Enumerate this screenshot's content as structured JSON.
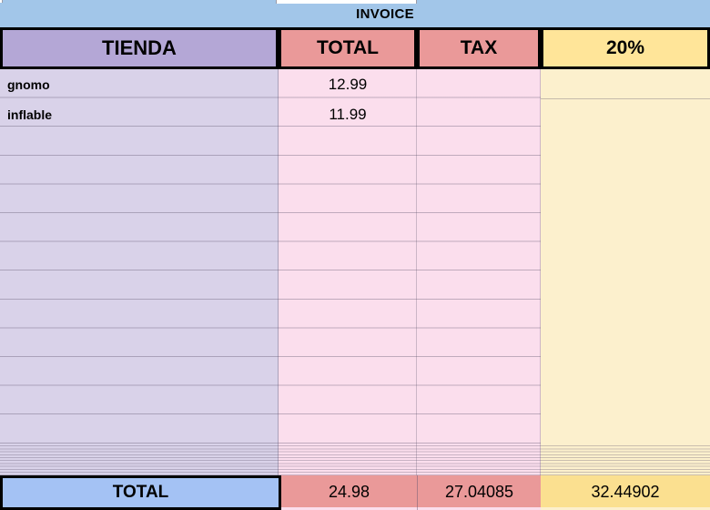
{
  "title": "INVOICE",
  "columns": [
    {
      "id": "tienda",
      "label": "TIENDA"
    },
    {
      "id": "total",
      "label": "TOTAL"
    },
    {
      "id": "tax",
      "label": "TAX"
    },
    {
      "id": "pct",
      "label": "20%"
    }
  ],
  "rows": [
    {
      "tienda": "gnomo",
      "total": "12.99",
      "tax": "",
      "pct": ""
    },
    {
      "tienda": "inflable",
      "total": "11.99",
      "tax": "",
      "pct": ""
    }
  ],
  "empty_full_rows_visible": 11,
  "compressed_row_stripes": 12,
  "totals_row": {
    "label": "TOTAL",
    "total": "24.98",
    "tax": "27.04085",
    "pct": "32.44902"
  },
  "colors": {
    "invoice_band": "#a2c6e9",
    "header_tienda": "#b4a7d6",
    "header_total_tax": "#ea9999",
    "header_pct": "#ffe599",
    "body_tienda": "#d9d2e9",
    "body_total_tax": "#fbdeed",
    "body_pct": "#fcf0cd",
    "totals_label_bg": "#a4c2f4",
    "totals_total_tax_bg": "#ea9999",
    "totals_pct_bg": "#fbe090",
    "cell_border": "#000000"
  }
}
